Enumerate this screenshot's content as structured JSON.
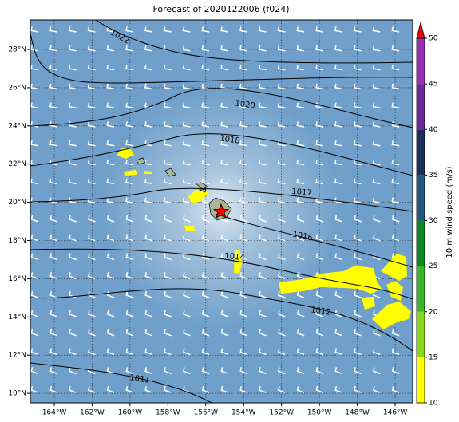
{
  "title": "Forecast of 2020122006 (f024)",
  "map": {
    "lon_labels": [
      "164°W",
      "162°W",
      "160°W",
      "158°W",
      "156°W",
      "154°W",
      "152°W",
      "150°W",
      "148°W",
      "146°W"
    ],
    "lat_labels": [
      "28°N",
      "26°N",
      "24°N",
      "22°N",
      "20°N",
      "18°N",
      "16°N",
      "14°N",
      "12°N",
      "10°N"
    ],
    "contour_labels": [
      "1022",
      "1020",
      "1018",
      "1017",
      "1016",
      "1014",
      "1012",
      "1011"
    ]
  },
  "colorbar": {
    "ticks": [
      50,
      45,
      40,
      35,
      30,
      25,
      20,
      15,
      10
    ],
    "label": "10 m wind speed (m/s)"
  }
}
